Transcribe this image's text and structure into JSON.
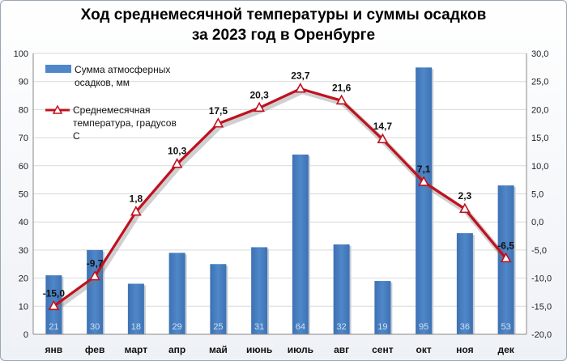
{
  "chart_data": {
    "type": "bar",
    "title_line1": "Ход среднемесячной температуры и суммы осадков",
    "title_line2": "за 2023 год в Оренбурге",
    "categories": [
      "янв",
      "фев",
      "март",
      "апр",
      "май",
      "июнь",
      "июль",
      "авг",
      "сент",
      "окт",
      "ноя",
      "дек"
    ],
    "series": [
      {
        "name": "Сумма атмосферных осадков, мм",
        "type": "bar",
        "axis": "left",
        "color": "#4f87c8",
        "values": [
          21,
          30,
          18,
          29,
          25,
          31,
          64,
          32,
          19,
          95,
          36,
          53
        ],
        "value_labels": [
          "21",
          "30",
          "18",
          "29",
          "25",
          "31",
          "64",
          "32",
          "19",
          "95",
          "36",
          "53"
        ]
      },
      {
        "name": "Среднемесячная температура, градусов С",
        "type": "line",
        "axis": "right",
        "color": "#c0111f",
        "values": [
          -15.0,
          -9.7,
          1.8,
          10.3,
          17.5,
          20.3,
          23.7,
          21.6,
          14.7,
          7.1,
          2.3,
          -6.5
        ],
        "value_labels": [
          "-15,0",
          "-9,7",
          "1,8",
          "10,3",
          "17,5",
          "20,3",
          "23,7",
          "21,6",
          "14,7",
          "7,1",
          "2,3",
          "-6,5"
        ]
      }
    ],
    "y_left": {
      "min": 0,
      "max": 100,
      "step": 10,
      "tick_labels": [
        "0",
        "10",
        "20",
        "30",
        "40",
        "50",
        "60",
        "70",
        "80",
        "90",
        "100"
      ]
    },
    "y_right": {
      "min": -20,
      "max": 30,
      "step": 5,
      "tick_labels": [
        "-20,0",
        "-15,0",
        "-10,0",
        "-5,0",
        "0,0",
        "5,0",
        "10,0",
        "15,0",
        "20,0",
        "25,0",
        "30,0"
      ]
    },
    "legend": {
      "position": "top-left",
      "bar_label_line1": "Сумма атмосферных",
      "bar_label_line2": "осадков, мм",
      "line_label_line1": "Среднемесячная",
      "line_label_line2": "температура, градусов",
      "line_label_line3": "С"
    }
  }
}
